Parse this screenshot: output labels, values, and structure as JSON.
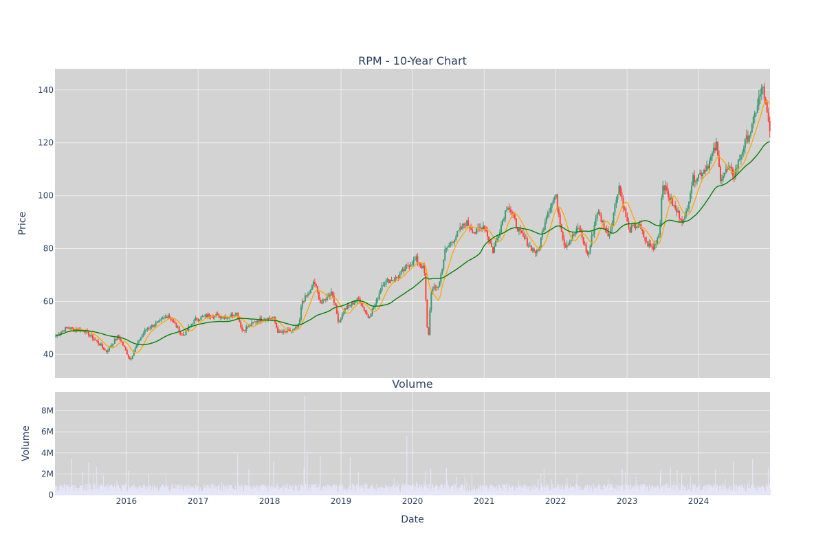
{
  "chart_data": {
    "type": "candlestick",
    "title": "RPM - 10-Year Chart",
    "xlabel": "Date",
    "x_range": [
      "2015-01-01",
      "2024-12-31"
    ],
    "x_ticks": [
      "2016",
      "2017",
      "2018",
      "2019",
      "2020",
      "2021",
      "2022",
      "2023",
      "2024"
    ],
    "price_panel": {
      "ylabel": "Price",
      "ylim": [
        31,
        148
      ],
      "y_ticks": [
        40,
        60,
        80,
        100,
        120,
        140
      ],
      "grid": true,
      "background": "#d3d3d3",
      "colors": {
        "up": "#3d9970",
        "down": "#ff4136",
        "ma_short": "#ffa500",
        "ma_long": "#008000"
      },
      "close_keypoints": [
        [
          "2015-01-05",
          47
        ],
        [
          "2015-03-01",
          50
        ],
        [
          "2015-06-01",
          49
        ],
        [
          "2015-08-15",
          44
        ],
        [
          "2015-09-20",
          41
        ],
        [
          "2015-11-20",
          47
        ],
        [
          "2016-01-20",
          38
        ],
        [
          "2016-03-10",
          46
        ],
        [
          "2016-04-15",
          50
        ],
        [
          "2016-06-15",
          52
        ],
        [
          "2016-08-01",
          55
        ],
        [
          "2016-10-15",
          47
        ],
        [
          "2016-12-15",
          53
        ],
        [
          "2017-03-01",
          55
        ],
        [
          "2017-06-01",
          54
        ],
        [
          "2017-07-15",
          56
        ],
        [
          "2017-08-15",
          49
        ],
        [
          "2017-11-01",
          53
        ],
        [
          "2018-01-20",
          54
        ],
        [
          "2018-02-15",
          48
        ],
        [
          "2018-05-01",
          49
        ],
        [
          "2018-06-01",
          51
        ],
        [
          "2018-06-15",
          60
        ],
        [
          "2018-08-01",
          64
        ],
        [
          "2018-08-15",
          68
        ],
        [
          "2018-09-20",
          59
        ],
        [
          "2018-11-15",
          64
        ],
        [
          "2018-12-20",
          52
        ],
        [
          "2019-01-20",
          57
        ],
        [
          "2019-04-01",
          61
        ],
        [
          "2019-05-20",
          54
        ],
        [
          "2019-07-01",
          60
        ],
        [
          "2019-08-01",
          67
        ],
        [
          "2019-10-15",
          69
        ],
        [
          "2019-12-15",
          74
        ],
        [
          "2020-01-20",
          76
        ],
        [
          "2020-03-01",
          72
        ],
        [
          "2020-03-20",
          44
        ],
        [
          "2020-04-05",
          64
        ],
        [
          "2020-05-15",
          66
        ],
        [
          "2020-06-15",
          79
        ],
        [
          "2020-08-01",
          84
        ],
        [
          "2020-10-01",
          90
        ],
        [
          "2020-11-15",
          86
        ],
        [
          "2020-12-31",
          89
        ],
        [
          "2021-02-15",
          79
        ],
        [
          "2021-05-01",
          97
        ],
        [
          "2021-07-01",
          86
        ],
        [
          "2021-09-01",
          80
        ],
        [
          "2021-10-01",
          78
        ],
        [
          "2021-11-15",
          93
        ],
        [
          "2022-01-01",
          100
        ],
        [
          "2022-02-15",
          81
        ],
        [
          "2022-03-15",
          83
        ],
        [
          "2022-05-01",
          88
        ],
        [
          "2022-06-15",
          77
        ],
        [
          "2022-08-01",
          94
        ],
        [
          "2022-10-01",
          85
        ],
        [
          "2022-11-20",
          104
        ],
        [
          "2023-01-10",
          87
        ],
        [
          "2023-03-01",
          89
        ],
        [
          "2023-04-10",
          82
        ],
        [
          "2023-05-15",
          80
        ],
        [
          "2023-06-15",
          86
        ],
        [
          "2023-07-01",
          105
        ],
        [
          "2023-09-01",
          95
        ],
        [
          "2023-10-20",
          90
        ],
        [
          "2023-12-01",
          106
        ],
        [
          "2024-01-20",
          109
        ],
        [
          "2024-02-20",
          112
        ],
        [
          "2024-04-01",
          119
        ],
        [
          "2024-04-20",
          107
        ],
        [
          "2024-06-01",
          110
        ],
        [
          "2024-07-01",
          108
        ],
        [
          "2024-08-15",
          118
        ],
        [
          "2024-10-01",
          126
        ],
        [
          "2024-11-01",
          136
        ],
        [
          "2024-11-25",
          141
        ],
        [
          "2024-12-31",
          123
        ]
      ]
    },
    "volume_panel": {
      "title": "Volume",
      "ylabel": "Volume",
      "ylim": [
        0,
        9800000
      ],
      "y_ticks": [
        0,
        2000000,
        4000000,
        6000000,
        8000000
      ],
      "y_tick_labels": [
        "0",
        "2M",
        "4M",
        "6M",
        "8M"
      ],
      "grid": true,
      "background": "#d3d3d3",
      "bar_color": "#e6e6fa",
      "typical_volume": 600000,
      "spikes": [
        [
          "2018-06-28",
          9400000
        ],
        [
          "2019-12-01",
          5600000
        ],
        [
          "2018-07-10",
          3900000
        ],
        [
          "2015-03-25",
          3500000
        ],
        [
          "2015-06-20",
          3100000
        ],
        [
          "2017-07-20",
          3900000
        ],
        [
          "2018-09-15",
          3700000
        ],
        [
          "2020-04-01",
          2500000
        ],
        [
          "2019-02-15",
          3600000
        ],
        [
          "2024-10-01",
          3400000
        ],
        [
          "2024-06-25",
          3200000
        ],
        [
          "2023-06-20",
          2400000
        ],
        [
          "2016-01-10",
          2300000
        ],
        [
          "2022-12-05",
          2500000
        ],
        [
          "2021-10-01",
          1500000
        ],
        [
          "2017-09-15",
          2500000
        ],
        [
          "2018-01-20",
          3200000
        ],
        [
          "2020-06-20",
          2600000
        ],
        [
          "2024-12-20",
          2600000
        ],
        [
          "2023-10-05",
          2100000
        ]
      ]
    }
  }
}
